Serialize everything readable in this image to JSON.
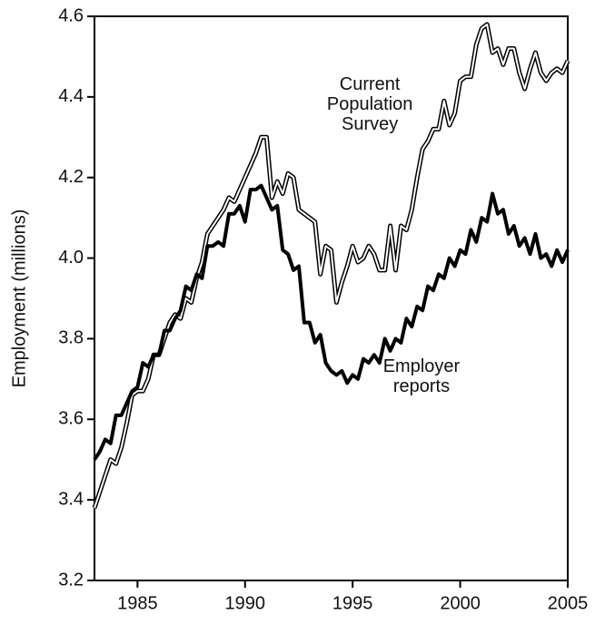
{
  "chart_data": {
    "type": "line",
    "ylabel": "Employment (millions)",
    "annotations": [
      {
        "lines": [
          "Current",
          "Population",
          "Survey"
        ],
        "x": 1995.8,
        "y": 4.43
      },
      {
        "lines": [
          "Employer",
          "reports"
        ],
        "x": 1998.2,
        "y": 3.73
      }
    ],
    "x": [
      1983,
      1983.25,
      1983.5,
      1983.75,
      1984,
      1984.25,
      1984.5,
      1984.75,
      1985,
      1985.25,
      1985.5,
      1985.75,
      1986,
      1986.25,
      1986.5,
      1986.75,
      1987,
      1987.25,
      1987.5,
      1987.75,
      1988,
      1988.25,
      1988.5,
      1988.75,
      1989,
      1989.25,
      1989.5,
      1989.75,
      1990,
      1990.25,
      1990.5,
      1990.75,
      1991,
      1991.25,
      1991.5,
      1991.75,
      1992,
      1992.25,
      1992.5,
      1992.75,
      1993,
      1993.25,
      1993.5,
      1993.75,
      1994,
      1994.25,
      1994.5,
      1994.75,
      1995,
      1995.25,
      1995.5,
      1995.75,
      1996,
      1996.25,
      1996.5,
      1996.75,
      1997,
      1997.25,
      1997.5,
      1997.75,
      1998,
      1998.25,
      1998.5,
      1998.75,
      1999,
      1999.25,
      1999.5,
      1999.75,
      2000,
      2000.25,
      2000.5,
      2000.75,
      2001,
      2001.25,
      2001.5,
      2001.75,
      2002,
      2002.25,
      2002.5,
      2002.75,
      2003,
      2003.25,
      2003.5,
      2003.75,
      2004,
      2004.25,
      2004.5,
      2004.75,
      2005
    ],
    "series": [
      {
        "color": "#ffffff",
        "values": [
          3.38,
          3.42,
          3.46,
          3.5,
          3.49,
          3.53,
          3.59,
          3.66,
          3.67,
          3.67,
          3.7,
          3.76,
          3.76,
          3.8,
          3.84,
          3.86,
          3.85,
          3.9,
          3.89,
          3.95,
          3.99,
          4.06,
          4.08,
          4.1,
          4.12,
          4.15,
          4.14,
          4.17,
          4.2,
          4.23,
          4.26,
          4.3,
          4.3,
          4.15,
          4.19,
          4.16,
          4.21,
          4.2,
          4.12,
          4.11,
          4.1,
          4.09,
          3.96,
          4.03,
          4.02,
          3.89,
          3.94,
          3.98,
          4.03,
          3.99,
          4.0,
          4.03,
          4.01,
          3.97,
          3.97,
          4.08,
          3.97,
          4.08,
          4.07,
          4.12,
          4.2,
          4.27,
          4.29,
          4.32,
          4.32,
          4.39,
          4.33,
          4.36,
          4.44,
          4.45,
          4.45,
          4.53,
          4.57,
          4.58,
          4.51,
          4.52,
          4.48,
          4.52,
          4.52,
          4.46,
          4.42,
          4.47,
          4.51,
          4.46,
          4.44,
          4.46,
          4.47,
          4.46,
          4.49
        ]
      },
      {
        "color": "#000000",
        "values": [
          3.5,
          3.52,
          3.55,
          3.54,
          3.61,
          3.61,
          3.64,
          3.67,
          3.68,
          3.74,
          3.73,
          3.76,
          3.76,
          3.82,
          3.82,
          3.85,
          3.87,
          3.93,
          3.92,
          3.96,
          3.95,
          4.03,
          4.03,
          4.04,
          4.03,
          4.11,
          4.11,
          4.13,
          4.09,
          4.17,
          4.17,
          4.18,
          4.15,
          4.12,
          4.13,
          4.02,
          4.01,
          3.97,
          3.98,
          3.84,
          3.84,
          3.79,
          3.81,
          3.74,
          3.72,
          3.71,
          3.72,
          3.69,
          3.71,
          3.7,
          3.75,
          3.74,
          3.76,
          3.74,
          3.8,
          3.77,
          3.8,
          3.79,
          3.85,
          3.83,
          3.88,
          3.87,
          3.93,
          3.92,
          3.96,
          3.95,
          4.0,
          3.98,
          4.02,
          4.01,
          4.07,
          4.04,
          4.1,
          4.09,
          4.16,
          4.11,
          4.12,
          4.06,
          4.08,
          4.03,
          4.05,
          4.01,
          4.06,
          4.0,
          4.01,
          3.98,
          4.02,
          3.99,
          4.02
        ]
      }
    ],
    "xlim": [
      1983,
      2005
    ],
    "xticks": [
      1985,
      1990,
      1995,
      2000,
      2005
    ],
    "ylim": [
      3.2,
      4.6
    ],
    "yticks": [
      3.2,
      3.4,
      3.6,
      3.8,
      {
        "value": 4,
        "label": "4.0"
      },
      4.2,
      4.4,
      4.6
    ]
  }
}
